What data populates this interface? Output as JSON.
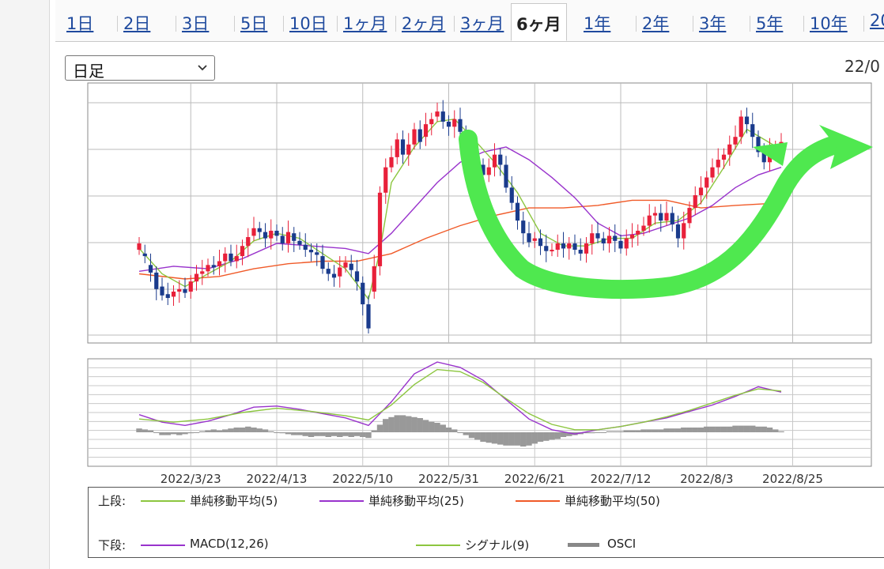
{
  "tabs": [
    "1日",
    "2日",
    "3日",
    "5日",
    "10日",
    "1ヶ月",
    "2ヶ月",
    "3ヶ月",
    "6ヶ月",
    "1年",
    "2年",
    "3年",
    "5年",
    "10年",
    "20"
  ],
  "active_tab": "6ヶ月",
  "period_select": {
    "value": "日足"
  },
  "date_text": "22/0",
  "legend": {
    "upper_label": "上段:",
    "lower_label": "下段:",
    "sma5": "単純移動平均(5)",
    "sma25": "単純移動平均(25)",
    "sma50": "単純移動平均(50)",
    "macd": "MACD(12,26)",
    "signal": "シグナル(9)",
    "osci": "OSCI"
  },
  "colors": {
    "up_candle": "#e8203a",
    "down_candle": "#1a3b8c",
    "sma5": "#8cc63f",
    "sma25": "#9933cc",
    "sma50": "#f05a28",
    "macd": "#9933cc",
    "signal": "#8cc63f",
    "osci": "#999999",
    "annotation_arrow": "#4fe84f"
  },
  "chart_data": {
    "type": "candlestick",
    "x_tick_labels": [
      "2022/3/23",
      "2022/4/13",
      "2022/5/10",
      "2022/5/31",
      "2022/6/21",
      "2022/7/12",
      "2022/8/3",
      "2022/8/25"
    ],
    "x_tick_index": [
      9,
      24,
      39,
      54,
      69,
      84,
      99,
      114
    ],
    "grid": true,
    "price_candles": [
      [
        0,
        0.355,
        0.38
      ],
      [
        1,
        0.34,
        0.33
      ],
      [
        2,
        0.295,
        0.265
      ],
      [
        3,
        0.265,
        0.2
      ],
      [
        4,
        0.21,
        0.175
      ],
      [
        5,
        0.18,
        0.165
      ],
      [
        6,
        0.17,
        0.19
      ],
      [
        7,
        0.19,
        0.2
      ],
      [
        8,
        0.2,
        0.185
      ],
      [
        9,
        0.19,
        0.23
      ],
      [
        10,
        0.23,
        0.26
      ],
      [
        11,
        0.26,
        0.27
      ],
      [
        12,
        0.27,
        0.295
      ],
      [
        13,
        0.295,
        0.285
      ],
      [
        14,
        0.29,
        0.31
      ],
      [
        15,
        0.31,
        0.34
      ],
      [
        16,
        0.34,
        0.31
      ],
      [
        17,
        0.31,
        0.33
      ],
      [
        18,
        0.33,
        0.37
      ],
      [
        19,
        0.37,
        0.405
      ],
      [
        20,
        0.41,
        0.44
      ],
      [
        21,
        0.44,
        0.425
      ],
      [
        22,
        0.425,
        0.4
      ],
      [
        23,
        0.4,
        0.43
      ],
      [
        24,
        0.43,
        0.41
      ],
      [
        25,
        0.41,
        0.38
      ],
      [
        26,
        0.38,
        0.425
      ],
      [
        27,
        0.42,
        0.39
      ],
      [
        28,
        0.39,
        0.375
      ],
      [
        29,
        0.375,
        0.355
      ],
      [
        30,
        0.355,
        0.345
      ],
      [
        31,
        0.345,
        0.335
      ],
      [
        32,
        0.33,
        0.28
      ],
      [
        33,
        0.28,
        0.26
      ],
      [
        34,
        0.26,
        0.245
      ],
      [
        35,
        0.25,
        0.285
      ],
      [
        36,
        0.285,
        0.305
      ],
      [
        37,
        0.3,
        0.275
      ],
      [
        38,
        0.27,
        0.23
      ],
      [
        39,
        0.225,
        0.14
      ],
      [
        40,
        0.14,
        0.045
      ],
      [
        41,
        0.19,
        0.29
      ],
      [
        42,
        0.29,
        0.58
      ],
      [
        43,
        0.58,
        0.68
      ],
      [
        44,
        0.68,
        0.72
      ],
      [
        45,
        0.72,
        0.79
      ],
      [
        46,
        0.79,
        0.73
      ],
      [
        47,
        0.73,
        0.77
      ],
      [
        48,
        0.77,
        0.83
      ],
      [
        49,
        0.83,
        0.78
      ],
      [
        50,
        0.8,
        0.85
      ],
      [
        51,
        0.85,
        0.87
      ],
      [
        52,
        0.88,
        0.9
      ],
      [
        53,
        0.9,
        0.86
      ],
      [
        54,
        0.86,
        0.84
      ],
      [
        55,
        0.84,
        0.87
      ],
      [
        56,
        0.87,
        0.82
      ],
      [
        57,
        0.82,
        0.77
      ],
      [
        58,
        0.77,
        0.73
      ],
      [
        59,
        0.73,
        0.69
      ],
      [
        60,
        0.69,
        0.65
      ],
      [
        61,
        0.65,
        0.68
      ],
      [
        62,
        0.68,
        0.73
      ],
      [
        63,
        0.73,
        0.69
      ],
      [
        64,
        0.69,
        0.6
      ],
      [
        65,
        0.6,
        0.54
      ],
      [
        66,
        0.54,
        0.47
      ],
      [
        67,
        0.47,
        0.42
      ],
      [
        68,
        0.42,
        0.385
      ],
      [
        69,
        0.39,
        0.4
      ],
      [
        70,
        0.4,
        0.37
      ],
      [
        71,
        0.37,
        0.35
      ],
      [
        72,
        0.35,
        0.355
      ],
      [
        73,
        0.355,
        0.38
      ],
      [
        74,
        0.38,
        0.36
      ],
      [
        75,
        0.36,
        0.38
      ],
      [
        76,
        0.38,
        0.355
      ],
      [
        77,
        0.355,
        0.34
      ],
      [
        78,
        0.34,
        0.38
      ],
      [
        79,
        0.38,
        0.42
      ],
      [
        80,
        0.42,
        0.4
      ],
      [
        81,
        0.4,
        0.38
      ],
      [
        82,
        0.38,
        0.41
      ],
      [
        83,
        0.41,
        0.39
      ],
      [
        84,
        0.39,
        0.36
      ],
      [
        85,
        0.36,
        0.4
      ],
      [
        86,
        0.4,
        0.415
      ],
      [
        87,
        0.415,
        0.43
      ],
      [
        88,
        0.43,
        0.45
      ],
      [
        89,
        0.45,
        0.49
      ],
      [
        90,
        0.49,
        0.5
      ],
      [
        91,
        0.5,
        0.47
      ],
      [
        92,
        0.47,
        0.5
      ],
      [
        93,
        0.5,
        0.455
      ],
      [
        94,
        0.455,
        0.4
      ],
      [
        95,
        0.4,
        0.46
      ],
      [
        96,
        0.46,
        0.52
      ],
      [
        97,
        0.52,
        0.57
      ],
      [
        98,
        0.57,
        0.6
      ],
      [
        99,
        0.6,
        0.64
      ],
      [
        100,
        0.64,
        0.68
      ],
      [
        101,
        0.68,
        0.71
      ],
      [
        102,
        0.71,
        0.73
      ],
      [
        103,
        0.73,
        0.77
      ],
      [
        104,
        0.77,
        0.8
      ],
      [
        105,
        0.8,
        0.88
      ],
      [
        106,
        0.88,
        0.85
      ],
      [
        107,
        0.85,
        0.8
      ],
      [
        108,
        0.8,
        0.74
      ],
      [
        109,
        0.74,
        0.7
      ],
      [
        110,
        0.7,
        0.75
      ],
      [
        111,
        0.75,
        0.76
      ],
      [
        112,
        0.76,
        0.78
      ]
    ],
    "sma5": [
      [
        0,
        0.36
      ],
      [
        4,
        0.26
      ],
      [
        8,
        0.21
      ],
      [
        12,
        0.26
      ],
      [
        16,
        0.31
      ],
      [
        20,
        0.39
      ],
      [
        24,
        0.42
      ],
      [
        28,
        0.4
      ],
      [
        32,
        0.34
      ],
      [
        36,
        0.28
      ],
      [
        40,
        0.16
      ],
      [
        42,
        0.35
      ],
      [
        44,
        0.62
      ],
      [
        48,
        0.76
      ],
      [
        52,
        0.86
      ],
      [
        55,
        0.87
      ],
      [
        58,
        0.8
      ],
      [
        62,
        0.7
      ],
      [
        66,
        0.58
      ],
      [
        70,
        0.42
      ],
      [
        74,
        0.37
      ],
      [
        78,
        0.37
      ],
      [
        82,
        0.4
      ],
      [
        86,
        0.4
      ],
      [
        90,
        0.46
      ],
      [
        94,
        0.47
      ],
      [
        98,
        0.54
      ],
      [
        102,
        0.68
      ],
      [
        106,
        0.83
      ],
      [
        109,
        0.79
      ],
      [
        112,
        0.75
      ]
    ],
    "sma25": [
      [
        0,
        0.27
      ],
      [
        6,
        0.29
      ],
      [
        12,
        0.28
      ],
      [
        18,
        0.32
      ],
      [
        24,
        0.38
      ],
      [
        30,
        0.37
      ],
      [
        36,
        0.36
      ],
      [
        40,
        0.34
      ],
      [
        44,
        0.42
      ],
      [
        48,
        0.52
      ],
      [
        52,
        0.62
      ],
      [
        56,
        0.7
      ],
      [
        60,
        0.74
      ],
      [
        64,
        0.76
      ],
      [
        68,
        0.71
      ],
      [
        72,
        0.64
      ],
      [
        76,
        0.56
      ],
      [
        80,
        0.46
      ],
      [
        84,
        0.41
      ],
      [
        88,
        0.42
      ],
      [
        92,
        0.45
      ],
      [
        96,
        0.48
      ],
      [
        100,
        0.53
      ],
      [
        104,
        0.6
      ],
      [
        108,
        0.65
      ],
      [
        112,
        0.68
      ]
    ],
    "sma50": [
      [
        0,
        0.26
      ],
      [
        8,
        0.24
      ],
      [
        14,
        0.25
      ],
      [
        20,
        0.28
      ],
      [
        26,
        0.3
      ],
      [
        32,
        0.31
      ],
      [
        38,
        0.31
      ],
      [
        44,
        0.34
      ],
      [
        50,
        0.4
      ],
      [
        56,
        0.45
      ],
      [
        62,
        0.49
      ],
      [
        68,
        0.52
      ],
      [
        74,
        0.52
      ],
      [
        80,
        0.53
      ],
      [
        86,
        0.55
      ],
      [
        92,
        0.55
      ],
      [
        98,
        0.52
      ],
      [
        104,
        0.53
      ],
      [
        112,
        0.54
      ]
    ],
    "macd": [
      [
        0,
        0.48
      ],
      [
        4,
        0.41
      ],
      [
        8,
        0.38
      ],
      [
        12,
        0.42
      ],
      [
        16,
        0.48
      ],
      [
        20,
        0.55
      ],
      [
        24,
        0.56
      ],
      [
        28,
        0.53
      ],
      [
        32,
        0.49
      ],
      [
        36,
        0.45
      ],
      [
        40,
        0.38
      ],
      [
        44,
        0.6
      ],
      [
        48,
        0.86
      ],
      [
        52,
        0.97
      ],
      [
        56,
        0.92
      ],
      [
        60,
        0.8
      ],
      [
        64,
        0.62
      ],
      [
        68,
        0.44
      ],
      [
        72,
        0.34
      ],
      [
        76,
        0.3
      ],
      [
        80,
        0.34
      ],
      [
        84,
        0.37
      ],
      [
        88,
        0.41
      ],
      [
        92,
        0.45
      ],
      [
        96,
        0.51
      ],
      [
        100,
        0.57
      ],
      [
        104,
        0.65
      ],
      [
        108,
        0.74
      ],
      [
        112,
        0.69
      ]
    ],
    "signal": [
      [
        0,
        0.44
      ],
      [
        6,
        0.41
      ],
      [
        12,
        0.44
      ],
      [
        18,
        0.5
      ],
      [
        24,
        0.54
      ],
      [
        30,
        0.51
      ],
      [
        36,
        0.47
      ],
      [
        40,
        0.43
      ],
      [
        44,
        0.57
      ],
      [
        48,
        0.76
      ],
      [
        52,
        0.9
      ],
      [
        56,
        0.88
      ],
      [
        60,
        0.78
      ],
      [
        64,
        0.63
      ],
      [
        68,
        0.49
      ],
      [
        72,
        0.39
      ],
      [
        76,
        0.34
      ],
      [
        80,
        0.34
      ],
      [
        84,
        0.37
      ],
      [
        88,
        0.41
      ],
      [
        92,
        0.46
      ],
      [
        96,
        0.52
      ],
      [
        100,
        0.59
      ],
      [
        104,
        0.66
      ],
      [
        108,
        0.72
      ],
      [
        112,
        0.7
      ]
    ],
    "osci": [
      0.04,
      0.03,
      0.02,
      0.0,
      -0.03,
      -0.03,
      -0.02,
      -0.03,
      -0.02,
      -0.01,
      0.0,
      0.01,
      0.02,
      0.03,
      0.02,
      0.03,
      0.04,
      0.05,
      0.05,
      0.06,
      0.05,
      0.04,
      0.03,
      0.01,
      0.0,
      -0.01,
      -0.02,
      -0.03,
      -0.03,
      -0.04,
      -0.05,
      -0.04,
      -0.04,
      -0.05,
      -0.04,
      -0.05,
      -0.04,
      -0.05,
      -0.04,
      -0.05,
      -0.06,
      0.02,
      0.08,
      0.14,
      0.16,
      0.18,
      0.18,
      0.17,
      0.16,
      0.15,
      0.13,
      0.11,
      0.1,
      0.08,
      0.05,
      0.03,
      0.0,
      -0.03,
      -0.06,
      -0.08,
      -0.1,
      -0.11,
      -0.12,
      -0.13,
      -0.14,
      -0.14,
      -0.14,
      -0.15,
      -0.14,
      -0.12,
      -0.1,
      -0.09,
      -0.08,
      -0.07,
      -0.05,
      -0.04,
      -0.03,
      -0.02,
      -0.01,
      -0.01,
      0.0,
      0.0,
      0.01,
      0.01,
      0.01,
      0.02,
      0.02,
      0.02,
      0.03,
      0.03,
      0.03,
      0.03,
      0.04,
      0.04,
      0.04,
      0.05,
      0.05,
      0.05,
      0.05,
      0.06,
      0.06,
      0.06,
      0.06,
      0.06,
      0.07,
      0.07,
      0.07,
      0.07,
      0.06,
      0.06,
      0.05,
      0.03,
      0.01
    ]
  }
}
